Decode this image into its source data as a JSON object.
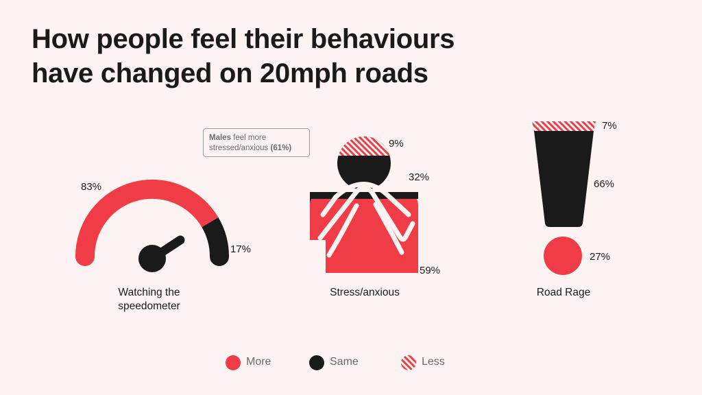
{
  "title_line1": "How people feel their behaviours",
  "title_line2": "have changed on 20mph roads",
  "note": {
    "bold": "Males",
    "text1": " feel more",
    "text2": "stressed/anxious ",
    "highlight": "(61%)"
  },
  "colors": {
    "more": "#f03c46",
    "same": "#1a1a1a",
    "less": "#f03c46",
    "background": "#fdf3f2"
  },
  "legend": [
    {
      "label": "More",
      "style": "solid-red"
    },
    {
      "label": "Same",
      "style": "solid-black"
    },
    {
      "label": "Less",
      "style": "hatched-red"
    }
  ],
  "chart_data": [
    {
      "type": "gauge",
      "category": "Watching the speedometer",
      "caption_line1": "Watching the",
      "caption_line2": "speedometer",
      "series": [
        {
          "name": "More",
          "value": 83,
          "label": "83%"
        },
        {
          "name": "Same",
          "value": 17,
          "label": "17%"
        }
      ],
      "unit": "%"
    },
    {
      "type": "pictogram",
      "category": "Stress/anxious",
      "caption": "Stress/anxious",
      "icon": "person-covering-face-icon",
      "series": [
        {
          "name": "Less",
          "value": 9,
          "label": "9%"
        },
        {
          "name": "Same",
          "value": 32,
          "label": "32%"
        },
        {
          "name": "More",
          "value": 59,
          "label": "59%"
        }
      ],
      "unit": "%"
    },
    {
      "type": "pictogram",
      "category": "Road Rage",
      "caption": "Road Rage",
      "icon": "exclamation-mark-icon",
      "series": [
        {
          "name": "Less",
          "value": 7,
          "label": "7%"
        },
        {
          "name": "Same",
          "value": 66,
          "label": "66%"
        },
        {
          "name": "More",
          "value": 27,
          "label": "27%"
        }
      ],
      "unit": "%"
    }
  ]
}
